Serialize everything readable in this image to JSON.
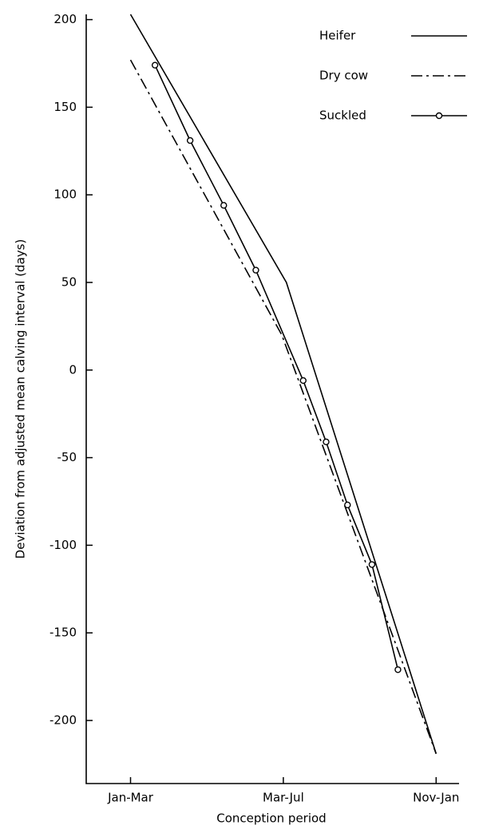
{
  "chart_data": {
    "type": "line",
    "xlabel": "Conception period",
    "ylabel": "Deviation from adjusted mean calving  interval  (days)",
    "xlim": [
      -0.29,
      2.15
    ],
    "xticks": [
      {
        "value": 0,
        "label": "Jan-Mar"
      },
      {
        "value": 1,
        "label": "Mar-Jul"
      },
      {
        "value": 2,
        "label": "Nov-Jan"
      }
    ],
    "ylim": [
      -236,
      203
    ],
    "yticks": [
      200,
      150,
      100,
      50,
      0,
      -50,
      -100,
      -150,
      -200
    ],
    "legend": "top-right",
    "series": [
      {
        "name": "Heifer",
        "color": "#000000",
        "style": "solid",
        "marker": false,
        "x": [
          0,
          1.02,
          2
        ],
        "values": [
          203,
          50,
          -219
        ]
      },
      {
        "name": "Dry cow",
        "color": "#000000",
        "style": "dashdot",
        "marker": false,
        "x": [
          0,
          0.99,
          2
        ],
        "values": [
          177,
          20,
          -219
        ]
      },
      {
        "name": "Suckled",
        "color": "#000000",
        "style": "solid",
        "marker": true,
        "x": [
          0.16,
          0.39,
          0.61,
          0.82,
          1.13,
          1.28,
          1.42,
          1.58,
          1.75
        ],
        "values": [
          174,
          131,
          94,
          57,
          -6,
          -41,
          -77,
          -111,
          -171
        ]
      }
    ]
  }
}
